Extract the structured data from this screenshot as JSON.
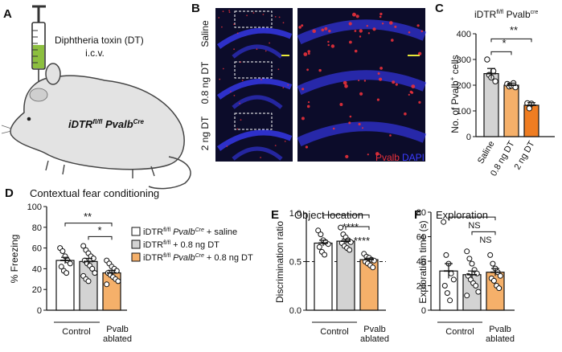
{
  "panels": {
    "A": {
      "letter": "A",
      "toxin_line1": "Diphtheria toxin (DT)",
      "toxin_line2": "i.c.v.",
      "mouse_label_base": "iDTR",
      "mouse_label_sup": "fl/fl",
      "mouse_label_gene": " Pvalb",
      "mouse_label_gene_sup": "Cre"
    },
    "B": {
      "letter": "B",
      "rows": [
        "Saline",
        "0.8 ng DT",
        "2 ng DT"
      ],
      "stain_pvalb": "Pvalb",
      "stain_dapi": "DAPI",
      "colors": {
        "pvalb": "#e8303a",
        "dapi": "#3a3cff",
        "background": "#0c0c2a"
      }
    },
    "C": {
      "letter": "C",
      "title_base": "iDTR",
      "title_sup": "fl/fl",
      "title_gene": " Pvalb",
      "title_gene_sup": "cre",
      "significance": [
        "*",
        "**"
      ]
    },
    "D": {
      "letter": "D",
      "title": "Contextual fear conditioning",
      "significance": [
        "**",
        "*"
      ],
      "legend": [
        {
          "base": "iDTR",
          "sup": "fl/fl",
          "gene": " Pvalb",
          "gene_sup": "Cre",
          "rest": " + saline",
          "color": "#ffffff"
        },
        {
          "base": "iDTR",
          "sup": "fl/fl",
          "gene": "",
          "gene_sup": "",
          "rest": " + 0.8 ng DT",
          "color": "#d3d3d3"
        },
        {
          "base": "iDTR",
          "sup": "fl/fl",
          "gene": " Pvalb",
          "gene_sup": "Cre",
          "rest": " + 0.8 ng DT",
          "color": "#f5b06a"
        }
      ],
      "group_control": "Control",
      "group_ablated_line1": "Pvalb",
      "group_ablated_line2": "ablated"
    },
    "E": {
      "letter": "E",
      "title": "Object location",
      "significance": [
        "****",
        "****"
      ],
      "group_control": "Control",
      "group_ablated_line1": "Pvalb",
      "group_ablated_line2": "ablated"
    },
    "F": {
      "letter": "F",
      "title": "Exploration",
      "significance": [
        "NS",
        "NS"
      ],
      "group_control": "Control",
      "group_ablated_line1": "Pvalb",
      "group_ablated_line2": "ablated"
    }
  },
  "chart_data": [
    {
      "id": "C",
      "type": "bar",
      "categories": [
        "Saline",
        "0.8 ng DT",
        "2 ng DT"
      ],
      "ylabel": "No. of Pvalb⁺ cells",
      "ylabel_base": "No. of Pvalb",
      "ylabel_sup": "+",
      "ylabel_rest": " cells",
      "ylim": [
        0,
        400
      ],
      "yticks": [
        0,
        100,
        200,
        300,
        400
      ],
      "values": [
        245,
        200,
        122
      ],
      "errors": [
        20,
        8,
        10
      ],
      "colors": [
        "#d3d3d3",
        "#f5b06a",
        "#ef7d22"
      ],
      "points": [
        [
          300,
          240,
          230,
          255,
          215
        ],
        [
          205,
          195,
          198,
          208,
          192
        ],
        [
          130,
          110,
          128
        ]
      ]
    },
    {
      "id": "D",
      "type": "bar",
      "categories": [
        "iDTR fl/fl PvalbCre + saline",
        "iDTR fl/fl + 0.8 ng DT",
        "iDTR fl/fl PvalbCre + 0.8 ng DT"
      ],
      "ylabel": "% Freezing",
      "ylim": [
        0,
        100
      ],
      "yticks": [
        0,
        20,
        40,
        60,
        80,
        100
      ],
      "values": [
        48,
        47,
        36
      ],
      "errors": [
        3,
        3,
        2.5
      ],
      "colors": [
        "#ffffff",
        "#d3d3d3",
        "#f5b06a"
      ],
      "points": [
        [
          60,
          57,
          52,
          48,
          45,
          42,
          38,
          36
        ],
        [
          62,
          58,
          55,
          52,
          50,
          48,
          45,
          43,
          40,
          36,
          33,
          30,
          28
        ],
        [
          48,
          45,
          42,
          40,
          38,
          36,
          34,
          32,
          30,
          28,
          25
        ]
      ]
    },
    {
      "id": "E",
      "type": "bar",
      "categories": [
        "Saline",
        "0.8 ng DT",
        "PvalbCre + 0.8 ng DT"
      ],
      "ylabel": "Discrimination ratio",
      "ylim": [
        0,
        1.0
      ],
      "yticks": [
        0,
        0.5,
        1.0
      ],
      "ytick_labels": [
        "0.0",
        "0.5",
        "1.0"
      ],
      "reference_line": 0.5,
      "values": [
        0.69,
        0.71,
        0.52
      ],
      "errors": [
        0.03,
        0.02,
        0.015
      ],
      "colors": [
        "#ffffff",
        "#d3d3d3",
        "#f5b06a"
      ],
      "points": [
        [
          0.82,
          0.78,
          0.72,
          0.7,
          0.68,
          0.65,
          0.6,
          0.57
        ],
        [
          0.85,
          0.78,
          0.75,
          0.72,
          0.7,
          0.69,
          0.66,
          0.64,
          0.62
        ],
        [
          0.58,
          0.55,
          0.54,
          0.52,
          0.51,
          0.5,
          0.48,
          0.46,
          0.44
        ]
      ]
    },
    {
      "id": "F",
      "type": "bar",
      "categories": [
        "Saline",
        "0.8 ng DT",
        "PvalbCre + 0.8 ng DT"
      ],
      "ylabel": "Exploration time (s)",
      "ylim": [
        0,
        80
      ],
      "yticks": [
        0,
        20,
        40,
        60,
        80
      ],
      "values": [
        32,
        29,
        31
      ],
      "errors": [
        6,
        3,
        3
      ],
      "colors": [
        "#ffffff",
        "#d3d3d3",
        "#f5b06a"
      ],
      "points": [
        [
          72,
          45,
          38,
          30,
          25,
          20,
          14,
          8
        ],
        [
          48,
          42,
          38,
          33,
          30,
          28,
          25,
          22,
          20,
          15,
          12
        ],
        [
          45,
          38,
          34,
          31,
          28,
          26,
          24,
          20,
          18
        ]
      ]
    }
  ]
}
